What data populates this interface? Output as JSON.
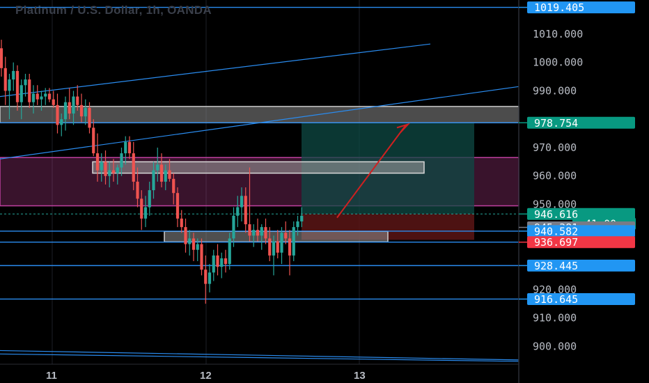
{
  "header": {
    "title": "Platinum / U.S. Dollar, 1h, OANDA"
  },
  "colors": {
    "background": "#000000",
    "bull": "#26a69a",
    "bear": "#ef5350",
    "hline": "#2a8cf0",
    "trend": "#2a8cf0",
    "zone_gray": "#8a8a8a",
    "zone_magenta": "#b03a8a",
    "target_zone": "#0f4a44",
    "stop_zone": "#5a1515",
    "arrow": "#d02020",
    "badge_blue": "#2196f3",
    "badge_teal": "#089981",
    "badge_gray": "#787b86",
    "badge_red": "#f23645"
  },
  "chart_data": {
    "type": "candlestick",
    "title": "Platinum / U.S. Dollar, 1h, OANDA",
    "ylim": [
      893.7,
      1022
    ],
    "y_ticks": [
      "1010.000",
      "1000.000",
      "990.000",
      "970.000",
      "960.000",
      "950.000",
      "920.000",
      "910.000",
      "900.000"
    ],
    "x_ticks": [
      "11",
      "12",
      "13"
    ],
    "candles": [
      {
        "o": 1005,
        "h": 1008,
        "l": 995,
        "c": 998
      },
      {
        "o": 998,
        "h": 1002,
        "l": 985,
        "c": 990
      },
      {
        "o": 990,
        "h": 996,
        "l": 980,
        "c": 994
      },
      {
        "o": 994,
        "h": 1000,
        "l": 990,
        "c": 997
      },
      {
        "o": 997,
        "h": 999,
        "l": 983,
        "c": 986
      },
      {
        "o": 986,
        "h": 994,
        "l": 980,
        "c": 992
      },
      {
        "o": 992,
        "h": 996,
        "l": 988,
        "c": 994
      },
      {
        "o": 994,
        "h": 996,
        "l": 984,
        "c": 986
      },
      {
        "o": 986,
        "h": 992,
        "l": 982,
        "c": 989
      },
      {
        "o": 989,
        "h": 992,
        "l": 985,
        "c": 987
      },
      {
        "o": 987,
        "h": 990,
        "l": 983,
        "c": 988
      },
      {
        "o": 988,
        "h": 991,
        "l": 985,
        "c": 989
      },
      {
        "o": 989,
        "h": 991,
        "l": 986,
        "c": 987
      },
      {
        "o": 987,
        "h": 990,
        "l": 984,
        "c": 985
      },
      {
        "o": 985,
        "h": 989,
        "l": 975,
        "c": 978
      },
      {
        "o": 978,
        "h": 982,
        "l": 974,
        "c": 980
      },
      {
        "o": 980,
        "h": 988,
        "l": 976,
        "c": 986
      },
      {
        "o": 986,
        "h": 991,
        "l": 980,
        "c": 982
      },
      {
        "o": 982,
        "h": 990,
        "l": 978,
        "c": 988
      },
      {
        "o": 988,
        "h": 992,
        "l": 983,
        "c": 985
      },
      {
        "o": 985,
        "h": 989,
        "l": 979,
        "c": 981
      },
      {
        "o": 981,
        "h": 987,
        "l": 978,
        "c": 984
      },
      {
        "o": 984,
        "h": 986,
        "l": 975,
        "c": 977
      },
      {
        "o": 977,
        "h": 980,
        "l": 967,
        "c": 968
      },
      {
        "o": 968,
        "h": 975,
        "l": 958,
        "c": 962
      },
      {
        "o": 962,
        "h": 968,
        "l": 958,
        "c": 965
      },
      {
        "o": 965,
        "h": 969,
        "l": 957,
        "c": 960
      },
      {
        "o": 960,
        "h": 965,
        "l": 956,
        "c": 962
      },
      {
        "o": 962,
        "h": 966,
        "l": 958,
        "c": 961
      },
      {
        "o": 961,
        "h": 964,
        "l": 957,
        "c": 963
      },
      {
        "o": 963,
        "h": 970,
        "l": 960,
        "c": 968
      },
      {
        "o": 968,
        "h": 974,
        "l": 964,
        "c": 972
      },
      {
        "o": 972,
        "h": 974,
        "l": 966,
        "c": 968
      },
      {
        "o": 968,
        "h": 972,
        "l": 955,
        "c": 958
      },
      {
        "o": 958,
        "h": 963,
        "l": 949,
        "c": 952
      },
      {
        "o": 952,
        "h": 955,
        "l": 941,
        "c": 945
      },
      {
        "o": 945,
        "h": 953,
        "l": 942,
        "c": 949
      },
      {
        "o": 949,
        "h": 958,
        "l": 946,
        "c": 955
      },
      {
        "o": 955,
        "h": 965,
        "l": 952,
        "c": 962
      },
      {
        "o": 962,
        "h": 970,
        "l": 958,
        "c": 964
      },
      {
        "o": 964,
        "h": 968,
        "l": 956,
        "c": 958
      },
      {
        "o": 958,
        "h": 964,
        "l": 955,
        "c": 962
      },
      {
        "o": 962,
        "h": 966,
        "l": 958,
        "c": 959
      },
      {
        "o": 959,
        "h": 961,
        "l": 950,
        "c": 954
      },
      {
        "o": 954,
        "h": 956,
        "l": 942,
        "c": 945
      },
      {
        "o": 945,
        "h": 948,
        "l": 940,
        "c": 942
      },
      {
        "o": 942,
        "h": 945,
        "l": 933,
        "c": 936
      },
      {
        "o": 936,
        "h": 941,
        "l": 932,
        "c": 938
      },
      {
        "o": 938,
        "h": 940,
        "l": 930,
        "c": 934
      },
      {
        "o": 934,
        "h": 938,
        "l": 930,
        "c": 936
      },
      {
        "o": 936,
        "h": 938,
        "l": 925,
        "c": 927
      },
      {
        "o": 927,
        "h": 932,
        "l": 915,
        "c": 922
      },
      {
        "o": 922,
        "h": 929,
        "l": 919,
        "c": 926
      },
      {
        "o": 926,
        "h": 934,
        "l": 923,
        "c": 932
      },
      {
        "o": 932,
        "h": 936,
        "l": 925,
        "c": 928
      },
      {
        "o": 928,
        "h": 933,
        "l": 924,
        "c": 931
      },
      {
        "o": 931,
        "h": 934,
        "l": 926,
        "c": 929
      },
      {
        "o": 929,
        "h": 940,
        "l": 927,
        "c": 938
      },
      {
        "o": 938,
        "h": 949,
        "l": 935,
        "c": 946
      },
      {
        "o": 946,
        "h": 953,
        "l": 942,
        "c": 949
      },
      {
        "o": 949,
        "h": 956,
        "l": 944,
        "c": 953
      },
      {
        "o": 953,
        "h": 956,
        "l": 940,
        "c": 943
      },
      {
        "o": 943,
        "h": 963,
        "l": 937,
        "c": 939
      },
      {
        "o": 939,
        "h": 943,
        "l": 935,
        "c": 941
      },
      {
        "o": 941,
        "h": 945,
        "l": 937,
        "c": 939
      },
      {
        "o": 939,
        "h": 943,
        "l": 934,
        "c": 942
      },
      {
        "o": 942,
        "h": 945,
        "l": 936,
        "c": 938
      },
      {
        "o": 938,
        "h": 942,
        "l": 930,
        "c": 932
      },
      {
        "o": 932,
        "h": 939,
        "l": 925,
        "c": 937
      },
      {
        "o": 937,
        "h": 941,
        "l": 931,
        "c": 933
      },
      {
        "o": 933,
        "h": 942,
        "l": 929,
        "c": 940
      },
      {
        "o": 940,
        "h": 944,
        "l": 936,
        "c": 938
      },
      {
        "o": 938,
        "h": 941,
        "l": 925,
        "c": 932
      },
      {
        "o": 932,
        "h": 944,
        "l": 930,
        "c": 942
      },
      {
        "o": 942,
        "h": 946,
        "l": 939,
        "c": 944
      },
      {
        "o": 944,
        "h": 949,
        "l": 942,
        "c": 946
      }
    ],
    "horizontal_lines": [
      1019.405,
      978.754,
      946.616,
      945.381,
      940.582,
      936.697,
      928.445,
      916.645
    ],
    "price_badges": [
      {
        "label": "1019.405",
        "value": 1019.405,
        "style": "blue"
      },
      {
        "label": "978.754",
        "value": 978.754,
        "style": "teal"
      },
      {
        "label": "946.616",
        "value": 946.616,
        "style": "teal"
      },
      {
        "label": "41:00",
        "value": 943.2,
        "style": "teal"
      },
      {
        "label": "945.381",
        "value": 941.9,
        "style": "gray"
      },
      {
        "label": "940.582",
        "value": 940.582,
        "style": "blue"
      },
      {
        "label": "936.697",
        "value": 936.697,
        "style": "red"
      },
      {
        "label": "928.445",
        "value": 928.445,
        "style": "blue"
      },
      {
        "label": "916.645",
        "value": 916.645,
        "style": "blue"
      }
    ],
    "current_price": 946.616,
    "zones": {
      "supply": [
        978.754,
        984.5
      ],
      "resistance_band": [
        949.5,
        966.5
      ],
      "long_target": [
        946.616,
        978.754
      ],
      "long_stop": [
        937.5,
        946.616
      ]
    },
    "grid": true
  }
}
